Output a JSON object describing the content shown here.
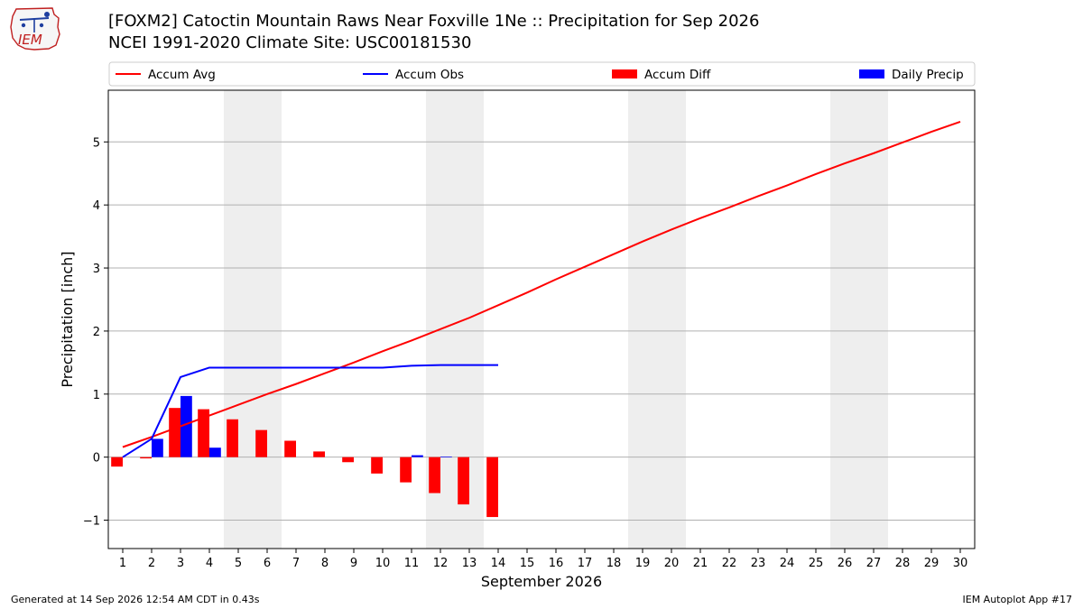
{
  "header": {
    "logo_text": "IEM",
    "title_line1": "[FOXM2] Catoctin Mountain Raws Near Foxville 1Ne :: Precipitation for Sep 2026",
    "title_line2": "NCEI 1991-2020 Climate Site: USC00181530"
  },
  "footer": {
    "generated": "Generated at 14 Sep 2026 12:54 AM CDT in 0.43s",
    "app": "IEM Autoplot App #17"
  },
  "colors": {
    "avg": "#ff0000",
    "obs": "#0000ff",
    "diff": "#ff0000",
    "daily": "#0000ff",
    "weekend_shade": "#eeeeee",
    "grid": "#b0b0b0"
  },
  "chart_data": {
    "type": "bar",
    "title": "[FOXM2] Catoctin Mountain Raws Near Foxville 1Ne :: Precipitation for Sep 2026",
    "subtitle": "NCEI 1991-2020 Climate Site: USC00181530",
    "xlabel": "September 2026",
    "ylabel": "Precipitation [inch]",
    "xlim": [
      0.5,
      30.5
    ],
    "ylim": [
      -1.45,
      5.82
    ],
    "grid": true,
    "legend_position": "top",
    "x": [
      1,
      2,
      3,
      4,
      5,
      6,
      7,
      8,
      9,
      10,
      11,
      12,
      13,
      14,
      15,
      16,
      17,
      18,
      19,
      20,
      21,
      22,
      23,
      24,
      25,
      26,
      27,
      28,
      29,
      30
    ],
    "x_tick_labels": [
      "1",
      "2",
      "3",
      "4",
      "5",
      "6",
      "7",
      "8",
      "9",
      "10",
      "11",
      "12",
      "13",
      "14",
      "15",
      "16",
      "17",
      "18",
      "19",
      "20",
      "21",
      "22",
      "23",
      "24",
      "25",
      "26",
      "27",
      "28",
      "29",
      "30"
    ],
    "y_ticks": [
      -1,
      0,
      1,
      2,
      3,
      4,
      5
    ],
    "y_tick_labels": [
      "−1",
      "0",
      "1",
      "2",
      "3",
      "4",
      "5"
    ],
    "weekend_shading": [
      [
        4.5,
        6.5
      ],
      [
        11.5,
        13.5
      ],
      [
        18.5,
        20.5
      ],
      [
        25.5,
        27.5
      ]
    ],
    "series": [
      {
        "name": "Accum Avg",
        "kind": "line",
        "x": [
          1,
          2,
          3,
          4,
          5,
          6,
          7,
          8,
          9,
          10,
          11,
          12,
          13,
          14,
          15,
          16,
          17,
          18,
          19,
          20,
          21,
          22,
          23,
          24,
          25,
          26,
          27,
          28,
          29,
          30
        ],
        "values": [
          0.16,
          0.32,
          0.49,
          0.66,
          0.83,
          1.0,
          1.16,
          1.33,
          1.5,
          1.68,
          1.85,
          2.03,
          2.21,
          2.41,
          2.61,
          2.82,
          3.02,
          3.22,
          3.42,
          3.61,
          3.79,
          3.96,
          4.14,
          4.31,
          4.49,
          4.66,
          4.82,
          4.99,
          5.16,
          5.32
        ]
      },
      {
        "name": "Accum Obs",
        "kind": "line",
        "x": [
          1,
          2,
          3,
          4,
          5,
          6,
          7,
          8,
          9,
          10,
          11,
          12,
          13,
          14
        ],
        "values": [
          0.0,
          0.29,
          1.27,
          1.42,
          1.42,
          1.42,
          1.42,
          1.42,
          1.42,
          1.42,
          1.45,
          1.46,
          1.46,
          1.46
        ]
      },
      {
        "name": "Accum Diff",
        "kind": "bar",
        "x": [
          1,
          2,
          3,
          4,
          5,
          6,
          7,
          8,
          9,
          10,
          11,
          12,
          13,
          14
        ],
        "values": [
          -0.15,
          -0.02,
          0.78,
          0.76,
          0.6,
          0.43,
          0.26,
          0.09,
          -0.08,
          -0.26,
          -0.4,
          -0.57,
          -0.75,
          -0.95
        ]
      },
      {
        "name": "Daily Precip",
        "kind": "bar",
        "x": [
          1,
          2,
          3,
          4,
          5,
          6,
          7,
          8,
          9,
          10,
          11,
          12,
          13,
          14
        ],
        "values": [
          0.0,
          0.29,
          0.97,
          0.15,
          0.0,
          0.0,
          0.0,
          0.0,
          0.0,
          0.0,
          0.03,
          0.01,
          0.0,
          0.0
        ]
      }
    ]
  }
}
